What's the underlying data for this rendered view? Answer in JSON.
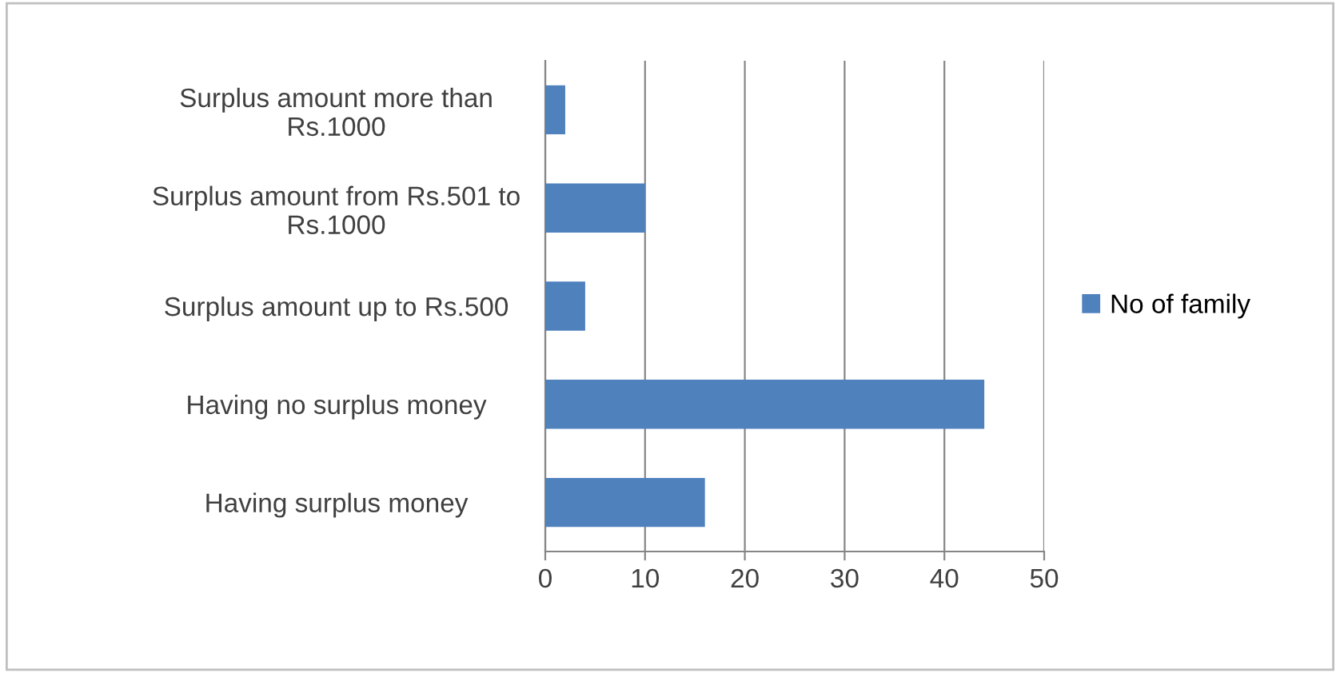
{
  "chart_data": {
    "type": "bar",
    "orientation": "horizontal",
    "categories": [
      "Surplus amount more than\nRs.1000",
      "Surplus amount from Rs.501 to\nRs.1000",
      "Surplus amount up to Rs.500",
      "Having no surplus money",
      "Having surplus money"
    ],
    "series": [
      {
        "name": "No of family",
        "color": "#4f81bd",
        "values": [
          2,
          10,
          4,
          44,
          16
        ]
      }
    ],
    "xlim": [
      0,
      50
    ],
    "xticks": [
      0,
      10,
      20,
      30,
      40,
      50
    ],
    "grid": "x",
    "legend": "right"
  }
}
